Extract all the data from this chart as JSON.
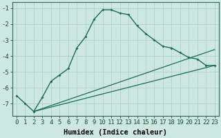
{
  "xlabel": "Humidex (Indice chaleur)",
  "background_color": "#cce8e0",
  "grid_color": "#aaccc4",
  "line_color": "#1a6b58",
  "x_values": [
    0,
    1,
    2,
    3,
    4,
    5,
    6,
    7,
    8,
    9,
    10,
    11,
    12,
    13,
    14,
    15,
    16,
    17,
    18,
    19,
    20,
    21,
    22,
    23
  ],
  "line1": [
    -6.5,
    -7.0,
    -7.5,
    -6.6,
    -5.6,
    -5.2,
    -4.8,
    -3.5,
    -2.8,
    -1.7,
    -1.1,
    -1.1,
    -1.3,
    -1.4,
    -2.1,
    -2.6,
    -3.0,
    -3.4,
    -3.5,
    -3.8,
    -4.1,
    -4.2,
    -4.6,
    -4.6
  ],
  "line2_x": [
    2,
    23
  ],
  "line2_y": [
    -7.5,
    -3.6
  ],
  "line3_x": [
    2,
    23
  ],
  "line3_y": [
    -7.5,
    -4.6
  ],
  "ylim": [
    -7.8,
    -0.6
  ],
  "xlim": [
    -0.5,
    23.5
  ],
  "yticks": [
    -7,
    -6,
    -5,
    -4,
    -3,
    -2,
    -1
  ],
  "xticks": [
    0,
    1,
    2,
    3,
    4,
    5,
    6,
    7,
    8,
    9,
    10,
    11,
    12,
    13,
    14,
    15,
    16,
    17,
    18,
    19,
    20,
    21,
    22,
    23
  ],
  "xlabel_fontsize": 7.5,
  "tick_fontsize": 6.5
}
